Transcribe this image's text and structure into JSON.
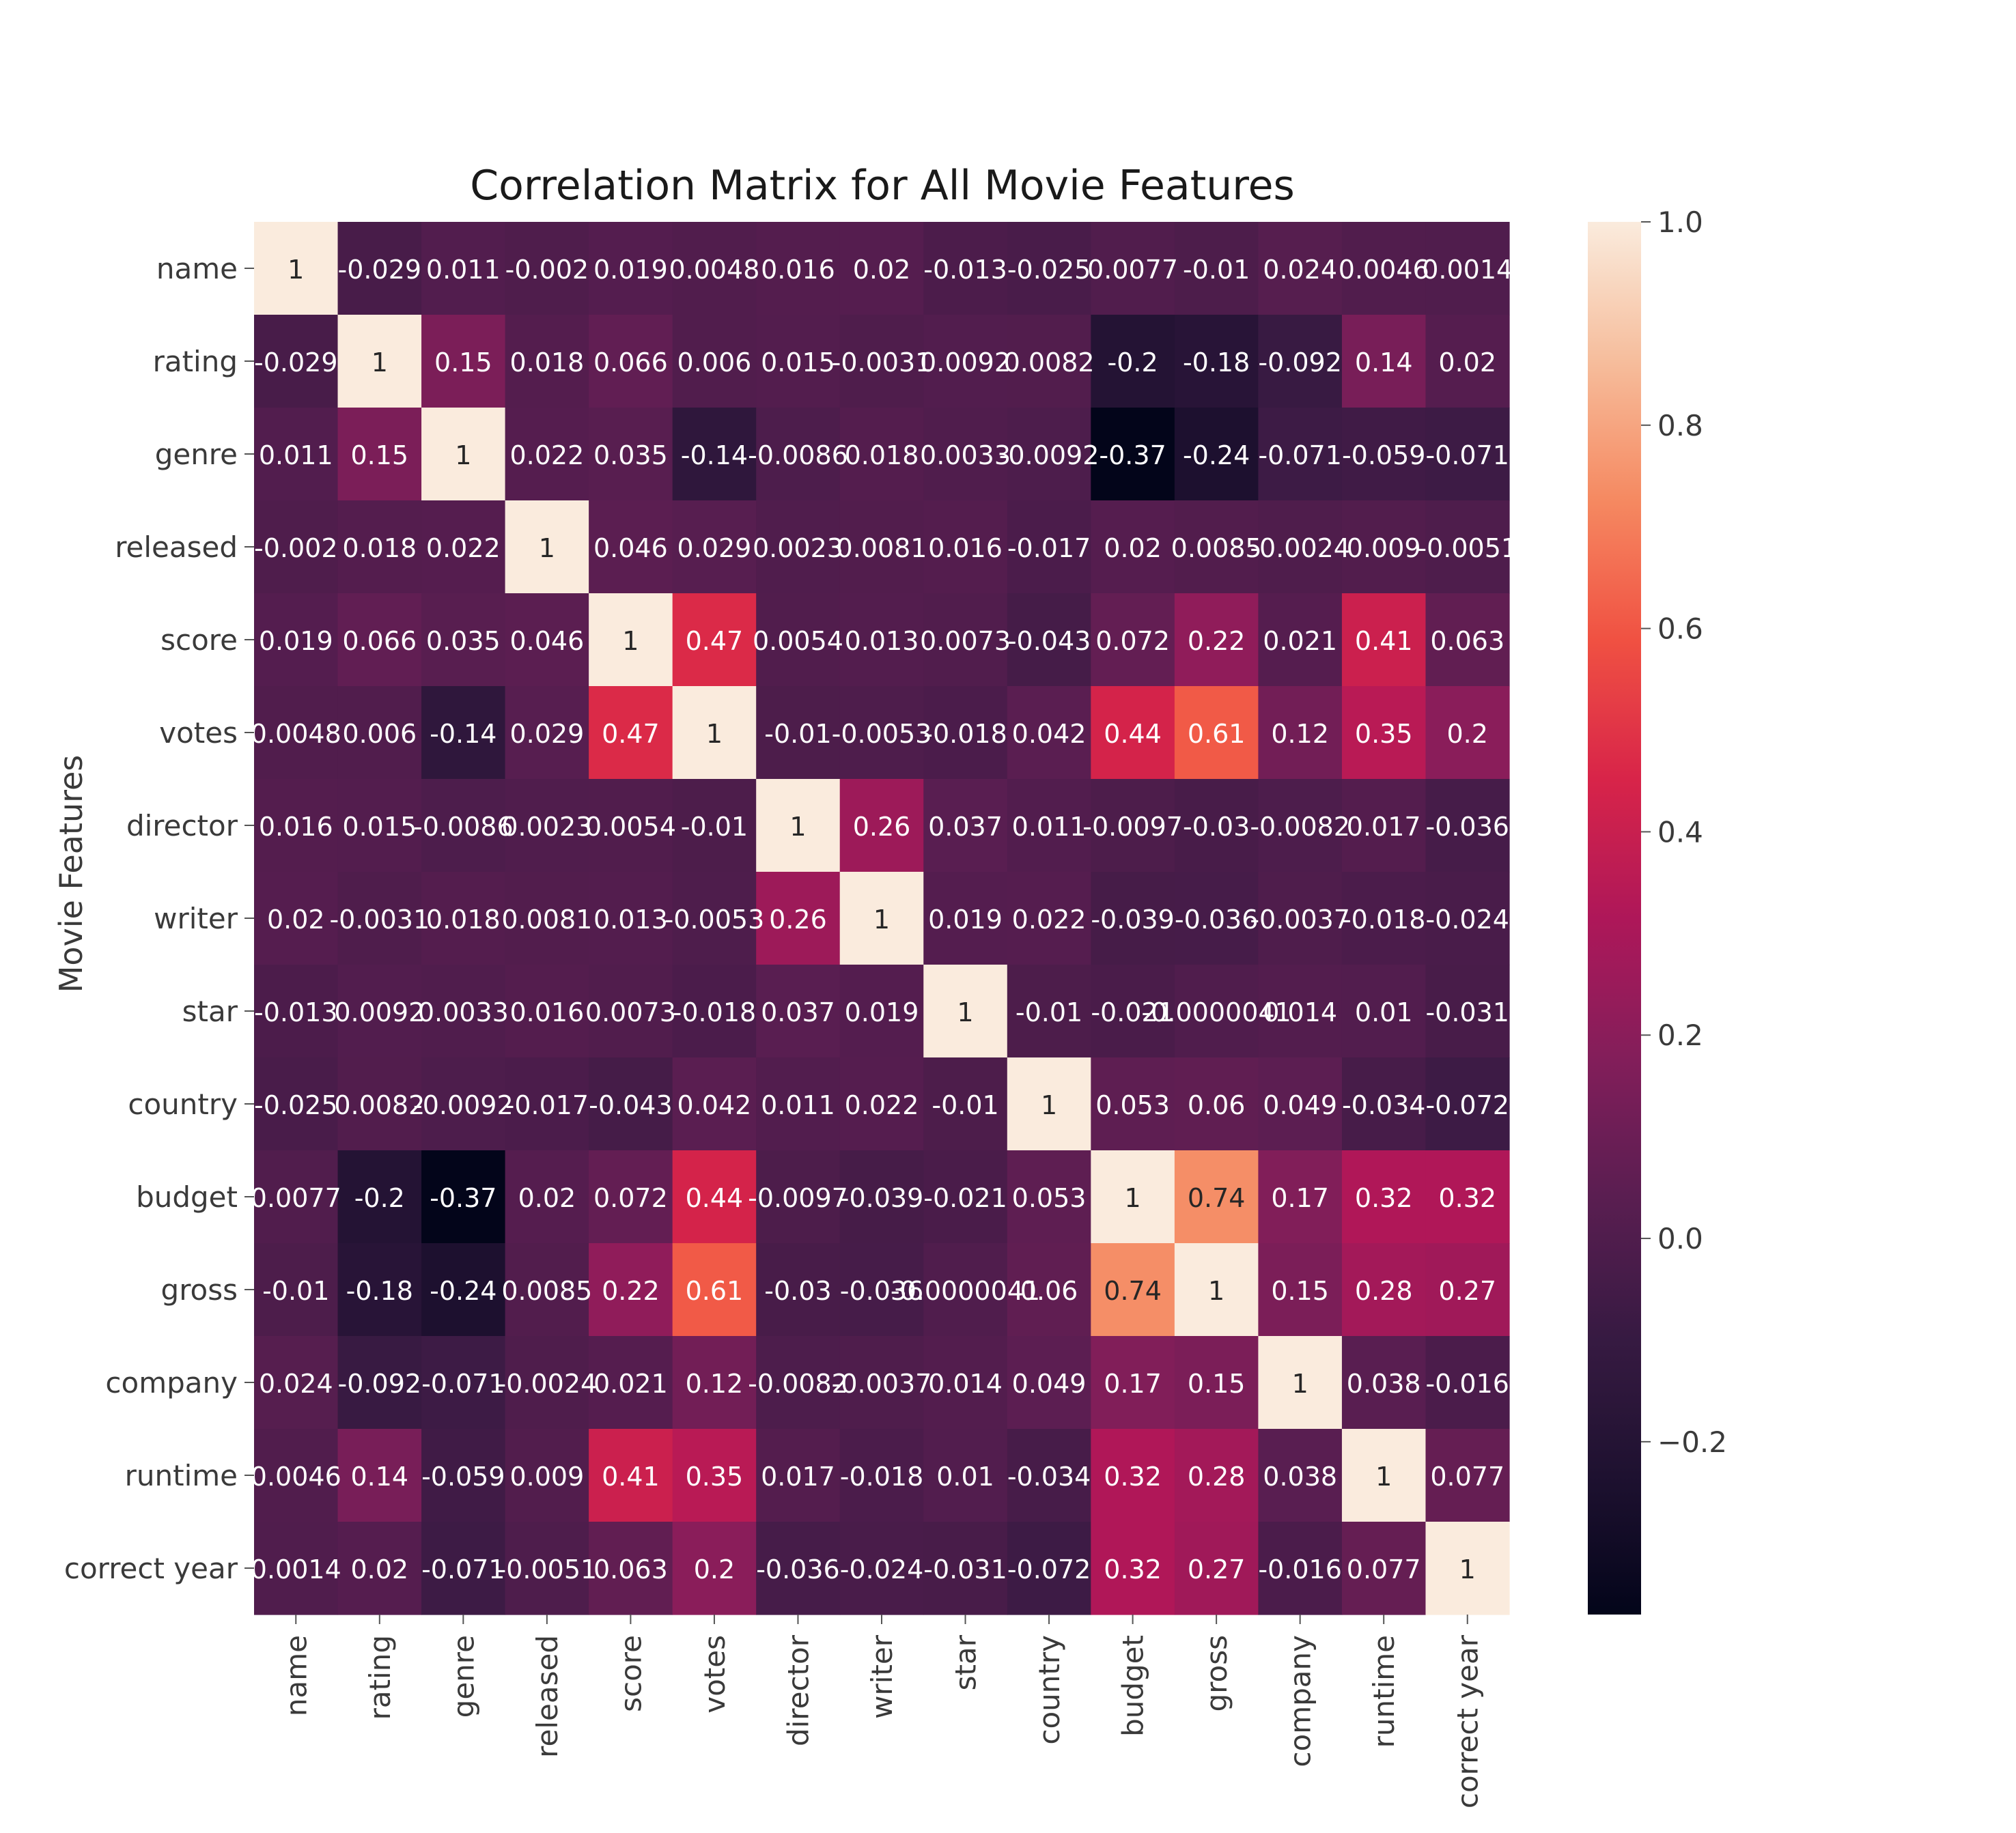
{
  "chart_data": {
    "type": "heatmap",
    "title": "Correlation Matrix for All Movie Features",
    "ylabel": "Movie Features",
    "xlabel": "",
    "labels": [
      "name",
      "rating",
      "genre",
      "released",
      "score",
      "votes",
      "director",
      "writer",
      "star",
      "country",
      "budget",
      "gross",
      "company",
      "runtime",
      "correct year"
    ],
    "matrix": [
      [
        1,
        -0.029,
        0.011,
        -0.002,
        0.019,
        0.0048,
        0.016,
        0.02,
        -0.013,
        -0.025,
        0.0077,
        -0.01,
        0.024,
        0.0046,
        0.0014
      ],
      [
        -0.029,
        1,
        0.15,
        0.018,
        0.066,
        0.006,
        0.015,
        -0.0031,
        0.0092,
        0.0082,
        -0.2,
        -0.18,
        -0.092,
        0.14,
        0.02
      ],
      [
        0.011,
        0.15,
        1,
        0.022,
        0.035,
        -0.14,
        -0.0086,
        0.018,
        0.0033,
        -0.0092,
        -0.37,
        -0.24,
        -0.071,
        -0.059,
        -0.071
      ],
      [
        -0.002,
        0.018,
        0.022,
        1,
        0.046,
        0.029,
        0.0023,
        0.0081,
        0.016,
        -0.017,
        0.02,
        0.0085,
        -0.0024,
        0.009,
        -0.0051
      ],
      [
        0.019,
        0.066,
        0.035,
        0.046,
        1,
        0.47,
        0.0054,
        0.013,
        0.0073,
        -0.043,
        0.072,
        0.22,
        0.021,
        0.41,
        0.063
      ],
      [
        0.0048,
        0.006,
        -0.14,
        0.029,
        0.47,
        1,
        -0.01,
        -0.0053,
        -0.018,
        0.042,
        0.44,
        0.61,
        0.12,
        0.35,
        0.2
      ],
      [
        0.016,
        0.015,
        -0.0086,
        0.0023,
        0.0054,
        -0.01,
        1,
        0.26,
        0.037,
        0.011,
        -0.0097,
        -0.03,
        -0.0082,
        0.017,
        -0.036
      ],
      [
        0.02,
        -0.0031,
        0.018,
        0.0081,
        0.013,
        -0.0053,
        0.26,
        1,
        0.019,
        0.022,
        -0.039,
        -0.036,
        -0.0037,
        -0.018,
        -0.024
      ],
      [
        -0.013,
        0.0092,
        0.0033,
        0.016,
        0.0073,
        -0.018,
        0.037,
        0.019,
        1,
        -0.01,
        -0.021,
        -4.1e-06,
        0.014,
        0.01,
        -0.031
      ],
      [
        -0.025,
        0.0082,
        -0.0092,
        -0.017,
        -0.043,
        0.042,
        0.011,
        0.022,
        -0.01,
        1,
        0.053,
        0.06,
        0.049,
        -0.034,
        -0.072
      ],
      [
        0.0077,
        -0.2,
        -0.37,
        0.02,
        0.072,
        0.44,
        -0.0097,
        -0.039,
        -0.021,
        0.053,
        1,
        0.74,
        0.17,
        0.32,
        0.32
      ],
      [
        -0.01,
        -0.18,
        -0.24,
        0.0085,
        0.22,
        0.61,
        -0.03,
        -0.036,
        -4.1e-06,
        0.06,
        0.74,
        1,
        0.15,
        0.28,
        0.27
      ],
      [
        0.024,
        -0.092,
        -0.071,
        -0.0024,
        0.021,
        0.12,
        -0.0082,
        -0.0037,
        0.014,
        0.049,
        0.17,
        0.15,
        1,
        0.038,
        -0.016
      ],
      [
        0.0046,
        0.14,
        -0.059,
        0.009,
        0.41,
        0.35,
        0.017,
        -0.018,
        0.01,
        -0.034,
        0.32,
        0.28,
        0.038,
        1,
        0.077
      ],
      [
        0.0014,
        0.02,
        -0.071,
        -0.0051,
        0.063,
        0.2,
        -0.036,
        -0.024,
        -0.031,
        -0.072,
        0.32,
        0.27,
        -0.016,
        0.077,
        1
      ]
    ],
    "colorbar": {
      "colormap": "rocket",
      "vmin": -0.37,
      "vmax": 1.0,
      "ticks": [
        1.0,
        0.8,
        0.6,
        0.4,
        0.2,
        0.0,
        -0.2
      ],
      "tick_labels": [
        "1.0",
        "0.8",
        "0.6",
        "0.4",
        "0.2",
        "0.0",
        "−0.2"
      ]
    },
    "grid": false,
    "legend": "colorbar-right"
  }
}
